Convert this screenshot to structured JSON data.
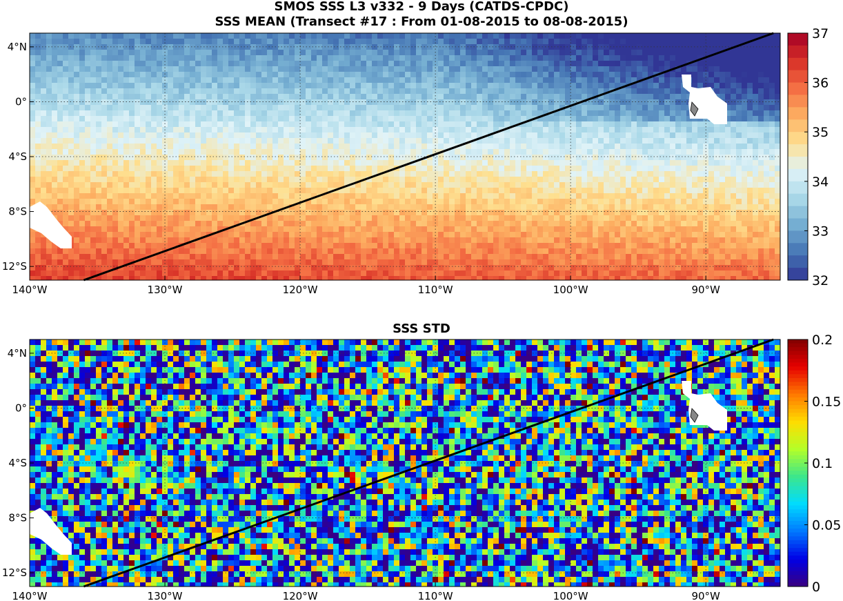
{
  "figure": {
    "title_line1": "SMOS SSS L3 v332 - 9 Days (CATDS-CPDC)",
    "title_line2": "SSS MEAN (Transect #17 : From 01-08-2015 to 08-08-2015)",
    "lon_ticks": [
      "140°W",
      "130°W",
      "120°W",
      "110°W",
      "100°W",
      "90°W"
    ],
    "lat_ticks": [
      "4°N",
      "0°",
      "4°S",
      "8°S",
      "12°S"
    ],
    "lon_tick_values": [
      -140,
      -130,
      -120,
      -110,
      -100,
      -90
    ],
    "lat_tick_values": [
      4,
      0,
      -4,
      -8,
      -12
    ],
    "map_extent": {
      "lon": [
        -140,
        -84.5
      ],
      "lat": [
        -13,
        5
      ]
    },
    "transect": {
      "start": {
        "lon": -136,
        "lat": -13
      },
      "end": {
        "lon": -85,
        "lat": 5
      }
    }
  },
  "panels": [
    {
      "name": "mean",
      "title": "",
      "colormap": "RdYlBu_r (blue → red)",
      "colorbar_ticks": [
        "37",
        "36",
        "35",
        "34",
        "33",
        "32"
      ],
      "colorbar_range": [
        32,
        37
      ]
    },
    {
      "name": "std",
      "title": "SSS STD",
      "colormap": "jet",
      "colorbar_ticks": [
        "0.2",
        "0.15",
        "0.1",
        "0.05",
        "0"
      ],
      "colorbar_range": [
        0,
        0.2
      ]
    }
  ],
  "colors": {
    "line": "#000000",
    "land_mask": "#ffffff",
    "mean_low": "#313695",
    "mean_mid": "#fee090",
    "mean_high": "#a50026",
    "std_low": "#3a0080",
    "std_high": "#800000"
  }
}
